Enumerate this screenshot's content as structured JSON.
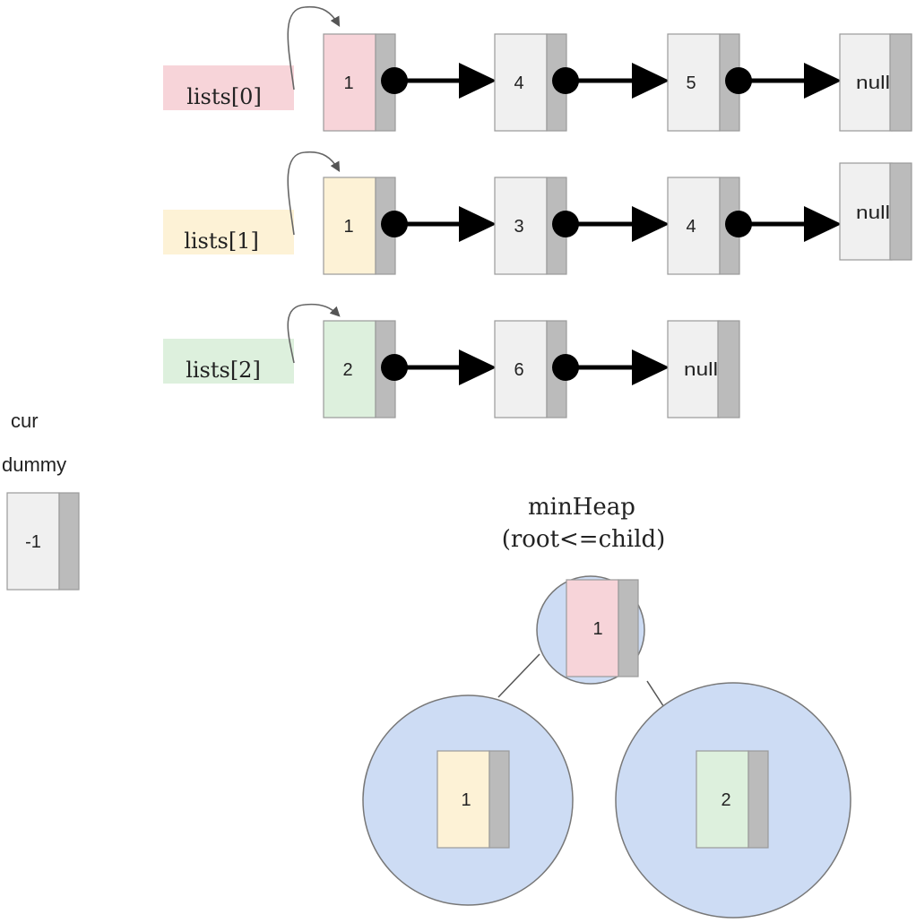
{
  "lists": [
    {
      "label": "lists[0]",
      "label_color": "#f7d4d9",
      "head_color": "#f7d4d9",
      "nodes": [
        "1",
        "4",
        "5"
      ],
      "tail": "null"
    },
    {
      "label": "lists[1]",
      "label_color": "#fdf2d6",
      "head_color": "#fdf2d6",
      "nodes": [
        "1",
        "3",
        "4"
      ],
      "tail": "null"
    },
    {
      "label": "lists[2]",
      "label_color": "#ddf0dd",
      "head_color": "#ddf0dd",
      "nodes": [
        "2",
        "6"
      ],
      "tail": "null"
    }
  ],
  "cur_label": "cur",
  "dummy_label": "dummy",
  "dummy_value": "-1",
  "heap": {
    "title": "minHeap",
    "subtitle": "(root<=child)",
    "circle_color": "#cddcf4",
    "root": {
      "value": "1",
      "color": "#f7d4d9"
    },
    "left": {
      "value": "1",
      "color": "#fdf2d6"
    },
    "right": {
      "value": "2",
      "color": "#ddf0dd"
    }
  },
  "colors": {
    "node_fill": "#f0f0f0",
    "node_tab": "#bbbbbb",
    "node_border": "#9a9a9a",
    "pointer": "#000000"
  }
}
